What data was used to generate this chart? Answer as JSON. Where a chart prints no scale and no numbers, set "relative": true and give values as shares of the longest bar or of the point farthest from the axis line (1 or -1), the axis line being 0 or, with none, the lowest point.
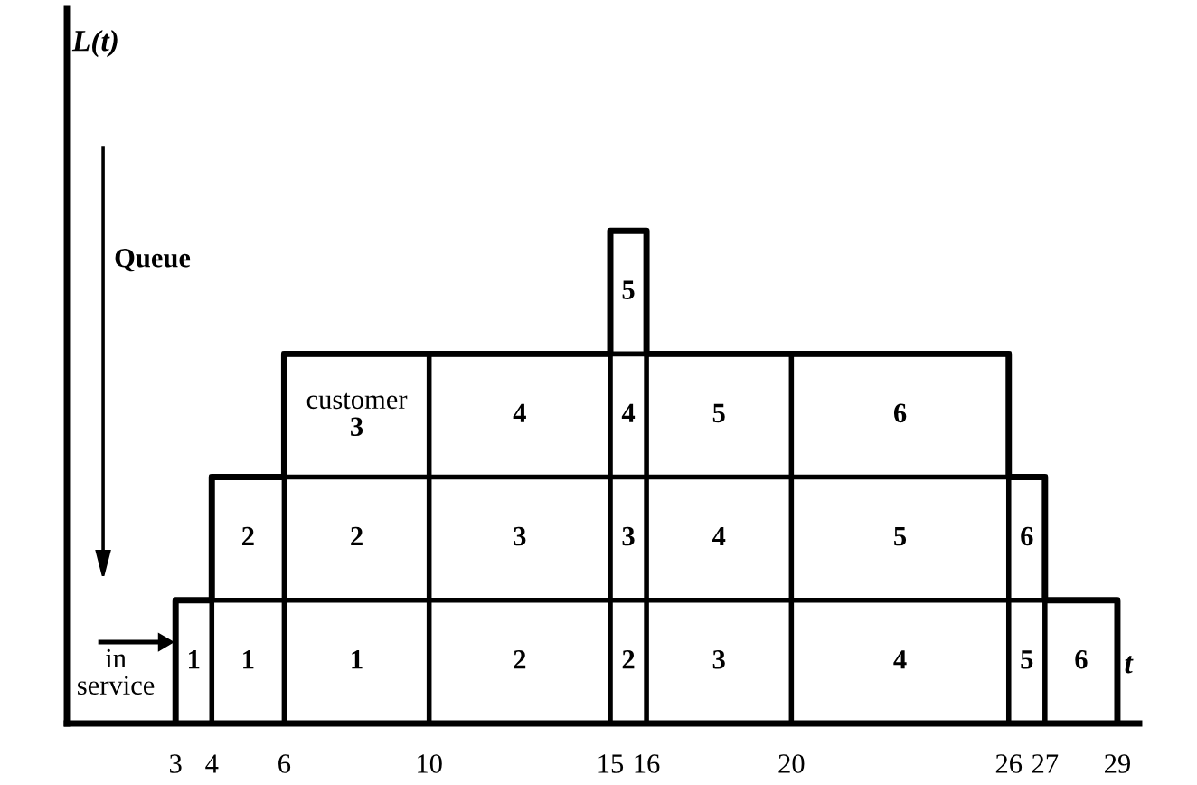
{
  "chart_data": {
    "type": "step",
    "relative": true,
    "xlabel": "t",
    "x": [
      3,
      3,
      4,
      6,
      10,
      15,
      16,
      20,
      26,
      27,
      29
    ],
    "series": [
      {
        "color": "#000000",
        "values": [
          0,
          0.25,
          0.5,
          0.75,
          0.75,
          1,
          0.75,
          0.75,
          0.5,
          0.25,
          0
        ]
      },
      {
        "type": "line",
        "color": "#000000",
        "x": [
          3,
          29
        ],
        "values": [
          0.25,
          0.25
        ]
      },
      {
        "type": "line",
        "color": "#000000",
        "x": [
          4,
          27
        ],
        "values": [
          0.5,
          0.5
        ]
      },
      {
        "type": "line",
        "color": "#000000",
        "x": [
          6,
          26
        ],
        "values": [
          0.75,
          0.75
        ]
      },
      {
        "type": "line",
        "color": "#000000",
        "x": [
          4,
          4
        ],
        "values": [
          0,
          0.25
        ]
      },
      {
        "type": "line",
        "color": "#000000",
        "x": [
          6,
          6
        ],
        "values": [
          0,
          0.5
        ]
      },
      {
        "type": "line",
        "color": "#000000",
        "x": [
          10,
          10
        ],
        "values": [
          0,
          0.75
        ]
      },
      {
        "type": "line",
        "color": "#000000",
        "x": [
          15,
          15
        ],
        "values": [
          0,
          0.75
        ]
      },
      {
        "type": "line",
        "color": "#000000",
        "x": [
          16,
          16
        ],
        "values": [
          0,
          0.75
        ]
      },
      {
        "type": "line",
        "color": "#000000",
        "x": [
          20,
          20
        ],
        "values": [
          0,
          0.75
        ]
      },
      {
        "type": "line",
        "color": "#000000",
        "x": [
          26,
          26
        ],
        "values": [
          0,
          0.5
        ]
      },
      {
        "type": "line",
        "color": "#000000",
        "x": [
          27,
          27
        ],
        "values": [
          0,
          0.25
        ]
      }
    ],
    "xlim": [
      0,
      29.6
    ],
    "xticks": [
      3,
      4,
      6,
      10,
      15,
      16,
      20,
      26,
      27,
      29
    ],
    "tick_labels": "x",
    "grid": false,
    "annotations": [
      "L(t)",
      "Queue",
      "in\nservice",
      "1",
      "1",
      "1",
      "2",
      "2",
      "3",
      "4",
      "5",
      "6",
      "2",
      "2",
      "3",
      "3",
      "4",
      "5",
      "6",
      "customer\n3",
      "4",
      "4",
      "5",
      "6",
      "5"
    ]
  }
}
